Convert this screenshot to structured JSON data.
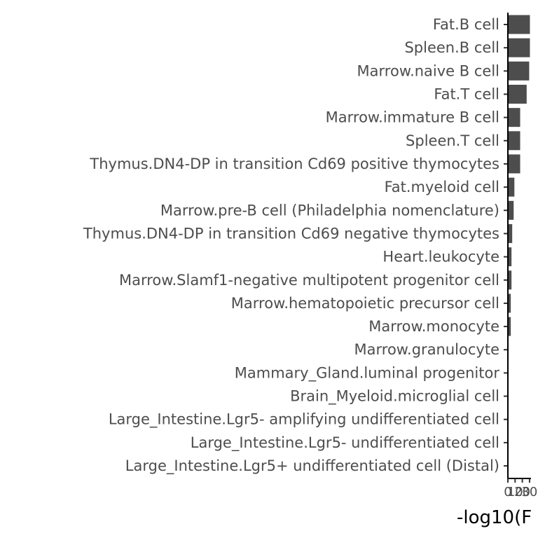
{
  "chart_data": {
    "type": "bar",
    "orientation": "horizontal",
    "xlabel": "-log10(F",
    "ylabel": "",
    "title": "",
    "xlim": [
      0,
      32
    ],
    "x_ticks": [
      "0",
      "10",
      "20",
      "30"
    ],
    "grid": false,
    "legend": "none",
    "bar_color": "#4d4d4d",
    "categories": [
      "Fat.B cell",
      "Spleen.B cell",
      "Marrow.naive B cell",
      "Fat.T cell",
      "Marrow.immature B cell",
      "Spleen.T cell",
      "Thymus.DN4-DP in transition Cd69 positive thymocytes",
      "Fat.myeloid cell",
      "Marrow.pre-B cell (Philadelphia nomenclature)",
      "Thymus.DN4-DP in transition Cd69 negative thymocytes",
      "Heart.leukocyte",
      "Marrow.Slamf1-negative multipotent progenitor cell",
      "Marrow.hematopoietic precursor cell",
      "Marrow.monocyte",
      "Marrow.granulocyte",
      "Mammary_Gland.luminal progenitor",
      "Brain_Myeloid.microglial cell",
      "Large_Intestine.Lgr5- amplifying undifferentiated cell",
      "Large_Intestine.Lgr5- undifferentiated cell",
      "Large_Intestine.Lgr5+ undifferentiated cell (Distal)"
    ],
    "values": [
      30.5,
      30.5,
      29.5,
      26.0,
      17.0,
      17.0,
      17.0,
      9.0,
      8.0,
      6.0,
      5.0,
      5.0,
      4.0,
      4.0,
      1.0,
      0.8,
      0.7,
      0.5,
      0.4,
      0.3
    ]
  }
}
